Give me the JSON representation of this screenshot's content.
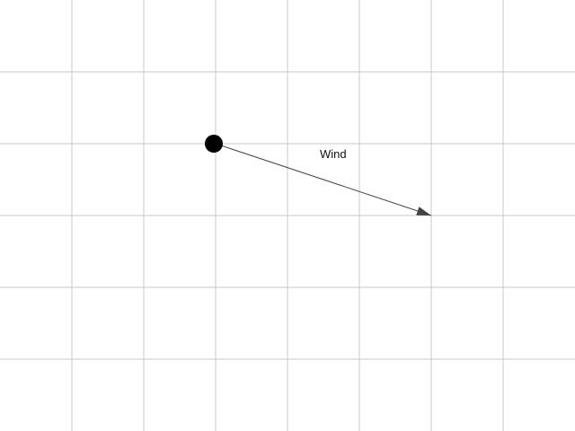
{
  "vector": {
    "label": "Wind",
    "line_color": "#444444",
    "point_color": "#000000"
  },
  "grid": {
    "visible": true,
    "line_color": "#c8c8c8"
  }
}
